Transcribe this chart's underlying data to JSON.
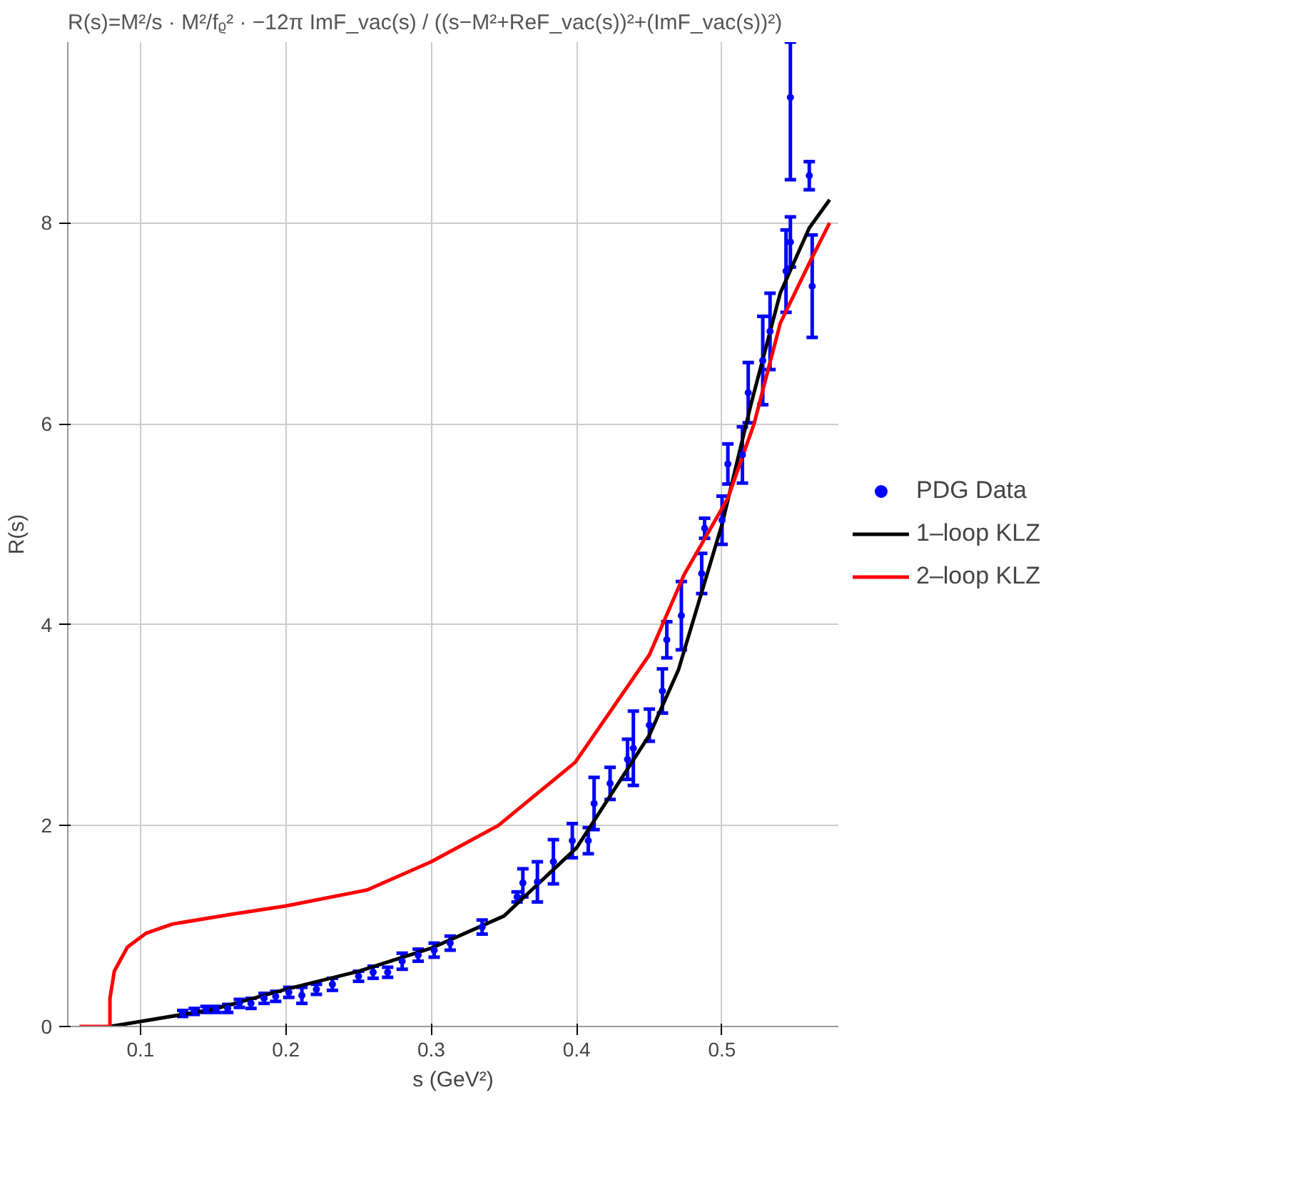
{
  "chart_data": {
    "type": "line",
    "title": "R(s)=M²/s · M²/fᵨ² · −12π ImF_vac(s) / ((s−M²+ReF_vac(s))²+(ImF_vac(s))²)",
    "xlabel": "s (GeV²)",
    "ylabel": "R(s)",
    "xlim": [
      0.05,
      0.58
    ],
    "ylim": [
      0,
      9.8
    ],
    "xticks": [
      0.1,
      0.2,
      0.3,
      0.4,
      0.5
    ],
    "yticks": [
      0,
      2,
      4,
      6,
      8
    ],
    "grid": true,
    "legend": "right",
    "series": [
      {
        "name": "PDG Data",
        "type": "scatter",
        "marker": "circle",
        "color": "#0000ff",
        "x": [
          0.129,
          0.137,
          0.145,
          0.152,
          0.16,
          0.168,
          0.176,
          0.185,
          0.193,
          0.202,
          0.211,
          0.221,
          0.232,
          0.25,
          0.26,
          0.27,
          0.28,
          0.291,
          0.302,
          0.313,
          0.335,
          0.359,
          0.363,
          0.373,
          0.384,
          0.397,
          0.408,
          0.412,
          0.423,
          0.435,
          0.439,
          0.45,
          0.459,
          0.462,
          0.472,
          0.486,
          0.488,
          0.5,
          0.504,
          0.514,
          0.518,
          0.528,
          0.533,
          0.544,
          0.547,
          0.547,
          0.56,
          0.562
        ],
        "values": [
          0.13,
          0.15,
          0.17,
          0.17,
          0.18,
          0.23,
          0.23,
          0.28,
          0.3,
          0.34,
          0.31,
          0.37,
          0.42,
          0.5,
          0.54,
          0.54,
          0.65,
          0.71,
          0.76,
          0.83,
          0.99,
          1.29,
          1.43,
          1.44,
          1.64,
          1.85,
          1.85,
          2.22,
          2.42,
          2.66,
          2.77,
          3.0,
          3.34,
          3.85,
          4.09,
          4.51,
          4.96,
          5.04,
          5.6,
          5.69,
          6.31,
          6.63,
          6.92,
          7.52,
          7.81,
          9.25,
          8.47,
          7.37
        ],
        "errors": [
          0.03,
          0.03,
          0.03,
          0.03,
          0.04,
          0.04,
          0.05,
          0.05,
          0.05,
          0.05,
          0.08,
          0.05,
          0.06,
          0.05,
          0.06,
          0.05,
          0.08,
          0.06,
          0.07,
          0.07,
          0.07,
          0.05,
          0.14,
          0.2,
          0.22,
          0.17,
          0.13,
          0.26,
          0.16,
          0.2,
          0.37,
          0.16,
          0.22,
          0.18,
          0.34,
          0.2,
          0.1,
          0.24,
          0.2,
          0.28,
          0.3,
          0.44,
          0.38,
          0.41,
          0.25,
          [
            8.43,
            9.8
          ],
          0.14,
          0.51
        ]
      },
      {
        "name": "1–loop KLZ",
        "color": "#000000",
        "x": [
          0.079,
          0.1,
          0.15,
          0.2,
          0.25,
          0.3,
          0.35,
          0.4,
          0.45,
          0.47,
          0.5,
          0.52,
          0.54,
          0.56,
          0.574
        ],
        "values": [
          0,
          0.05,
          0.17,
          0.37,
          0.55,
          0.78,
          1.1,
          1.78,
          2.9,
          3.55,
          5.0,
          6.2,
          7.3,
          7.95,
          8.23
        ]
      },
      {
        "name": "2–loop KLZ",
        "color": "#ff0000",
        "x": [
          0.058,
          0.079,
          0.079,
          0.082,
          0.091,
          0.104,
          0.122,
          0.164,
          0.2,
          0.256,
          0.3,
          0.346,
          0.399,
          0.45,
          0.474,
          0.504,
          0.522,
          0.54,
          0.56,
          0.574
        ],
        "values": [
          0,
          0,
          0.28,
          0.55,
          0.79,
          0.93,
          1.02,
          1.12,
          1.2,
          1.36,
          1.64,
          2.0,
          2.63,
          3.7,
          4.5,
          5.26,
          6.0,
          7.0,
          7.6,
          8.0
        ]
      }
    ]
  }
}
